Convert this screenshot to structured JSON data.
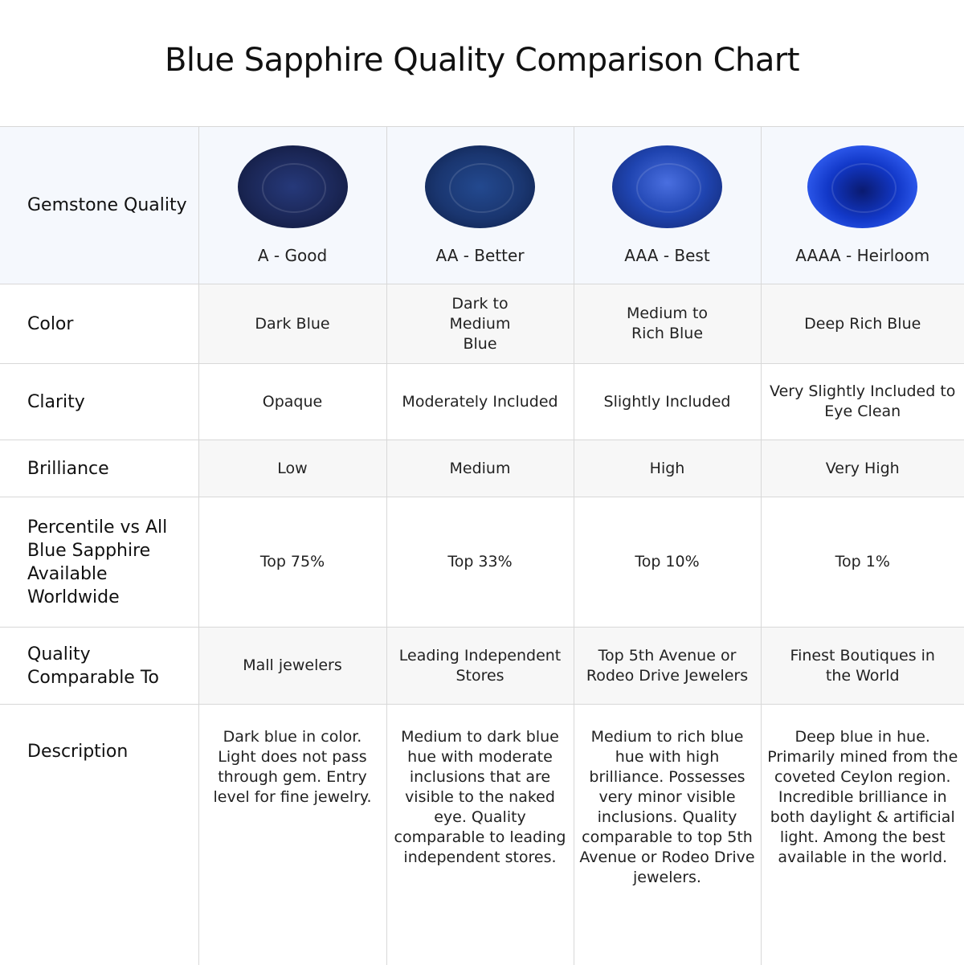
{
  "title": "Blue Sapphire Quality Comparison Chart",
  "rows": {
    "quality": {
      "label": "Gemstone Quality",
      "values": [
        "A - Good",
        "AA - Better",
        "AAA - Best",
        "AAAA - Heirloom"
      ]
    },
    "color": {
      "label": "Color",
      "values": [
        "Dark Blue",
        "Dark to Medium Blue",
        "Medium to Rich Blue",
        "Deep Rich Blue"
      ]
    },
    "clarity": {
      "label": "Clarity",
      "values": [
        "Opaque",
        "Moderately Included",
        "Slightly Included",
        "Very Slightly Included to Eye Clean"
      ]
    },
    "brilliance": {
      "label": "Brilliance",
      "values": [
        "Low",
        "Medium",
        "High",
        "Very High"
      ]
    },
    "percentile": {
      "label": "Percentile vs All Blue Sapphire Available Worldwide",
      "values": [
        "Top 75%",
        "Top 33%",
        "Top 10%",
        "Top 1%"
      ]
    },
    "comparable": {
      "label": "Quality Comparable To",
      "values": [
        "Mall jewelers",
        "Leading Independent Stores",
        "Top 5th Avenue or Rodeo Drive Jewelers",
        "Finest Boutiques in the World"
      ]
    },
    "description": {
      "label": "Description",
      "values": [
        "Dark blue in color. Light does not pass through gem. Entry level for fine jewelry.",
        "Medium to dark blue hue with moderate inclusions that are visible to the naked eye. Quality comparable to leading independent stores.",
        "Medium to rich blue hue with high brilliance. Possesses very minor visible inclusions. Quality comparable to top 5th Avenue or Rodeo Drive jewelers.",
        "Deep blue in hue. Primarily mined from the coveted Ceylon region. Incredible brilliance in both daylight & artificial light. Among the best available in the world."
      ]
    }
  },
  "gem_colors": [
    "#1b2757",
    "#1a3670",
    "#1f44b0",
    "#1238c8"
  ]
}
